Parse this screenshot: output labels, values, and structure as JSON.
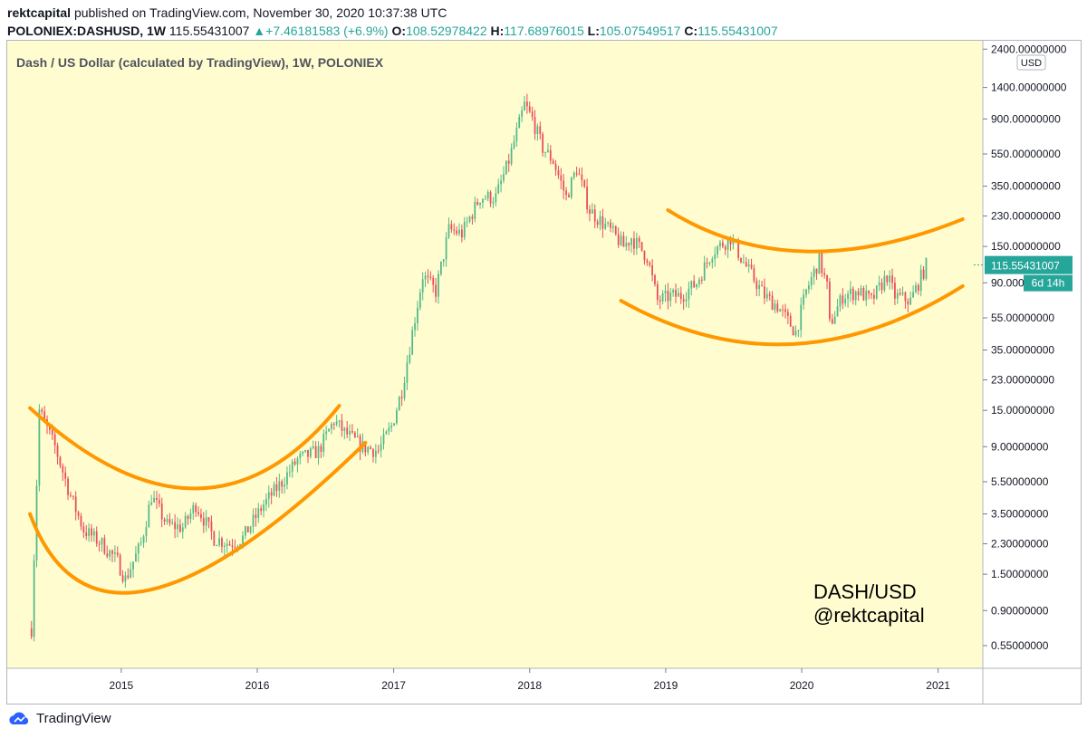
{
  "header": {
    "author": "rektcapital",
    "published_text": "published on TradingView.com, November 30, 2020 10:37:38 UTC",
    "symbol": "POLONIEX:DASHUSD, 1W",
    "last_price": "115.55431007",
    "change": "+7.46181583 (+6.9%)",
    "o_label": "O:",
    "o_value": "108.52978422",
    "h_label": "H:",
    "h_value": "117.68976015",
    "l_label": "L:",
    "l_value": "105.07549517",
    "c_label": "C:",
    "c_value": "115.55431007"
  },
  "watermark": {
    "line1": "DASH/USD",
    "line2": "@rektcapital"
  },
  "footer": {
    "brand": "TradingView"
  },
  "colors": {
    "up": "#26a69a",
    "up_fill": "#53b987",
    "down": "#eb4d5c",
    "plot_bg": "#fffdd0",
    "curve": "#ff9800",
    "price_tag": "#26a69a"
  },
  "chart_data": {
    "type": "candlestick",
    "title": "Dash / US Dollar (calculated by TradingView), 1W, POLONIEX",
    "interval": "1W",
    "y_scale": "log",
    "currency_label": "USD",
    "ylim": [
      0.4,
      2700
    ],
    "xlim": [
      "2014-03-01",
      "2021-05-01"
    ],
    "y_ticks": [
      2400,
      1400,
      900,
      550,
      350,
      230,
      150,
      90,
      55,
      35,
      23,
      15,
      9,
      5.5,
      3.5,
      2.3,
      1.5,
      0.9,
      0.55
    ],
    "y_tick_labels": [
      "2400.00000000",
      "1400.00000000",
      "900.00000000",
      "550.00000000",
      "350.00000000",
      "230.00000000",
      "150.00000000",
      "90.00000000",
      "55.00000000",
      "35.00000000",
      "23.00000000",
      "15.00000000",
      "9.00000000",
      "5.50000000",
      "3.50000000",
      "2.30000000",
      "1.50000000",
      "0.90000000",
      "0.55000000"
    ],
    "x_ticks": [
      "2015",
      "2016",
      "2017",
      "2018",
      "2019",
      "2020",
      "2021"
    ],
    "last_price_label": "115.55431007",
    "countdown_label": "6d 14h",
    "price_path": [
      [
        "2014-05-05",
        0.7
      ],
      [
        "2014-05-26",
        15
      ],
      [
        "2014-07-07",
        9
      ],
      [
        "2014-08-18",
        4.5
      ],
      [
        "2014-09-22",
        2.8
      ],
      [
        "2014-11-10",
        2.3
      ],
      [
        "2014-12-22",
        1.8
      ],
      [
        "2015-01-12",
        1.4
      ],
      [
        "2015-02-23",
        2.3
      ],
      [
        "2015-03-23",
        4.5
      ],
      [
        "2015-05-04",
        3.0
      ],
      [
        "2015-06-15",
        2.9
      ],
      [
        "2015-07-20",
        4.0
      ],
      [
        "2015-09-07",
        2.5
      ],
      [
        "2015-10-19",
        2.3
      ],
      [
        "2015-11-23",
        2.5
      ],
      [
        "2016-01-18",
        4.0
      ],
      [
        "2016-03-07",
        5.5
      ],
      [
        "2016-04-18",
        7.5
      ],
      [
        "2016-06-13",
        8.5
      ],
      [
        "2016-07-25",
        13
      ],
      [
        "2016-08-22",
        11
      ],
      [
        "2016-10-10",
        9
      ],
      [
        "2016-11-21",
        8.5
      ],
      [
        "2016-12-26",
        12
      ],
      [
        "2017-01-23",
        20
      ],
      [
        "2017-02-20",
        45
      ],
      [
        "2017-03-20",
        100
      ],
      [
        "2017-04-24",
        80
      ],
      [
        "2017-05-29",
        190
      ],
      [
        "2017-07-03",
        180
      ],
      [
        "2017-08-21",
        300
      ],
      [
        "2017-10-02",
        300
      ],
      [
        "2017-11-06",
        500
      ],
      [
        "2017-12-18",
        1100
      ],
      [
        "2018-01-08",
        900
      ],
      [
        "2018-02-05",
        600
      ],
      [
        "2018-03-05",
        500
      ],
      [
        "2018-04-09",
        300
      ],
      [
        "2018-05-07",
        450
      ],
      [
        "2018-06-11",
        250
      ],
      [
        "2018-08-13",
        180
      ],
      [
        "2018-09-10",
        150
      ],
      [
        "2018-10-01",
        170
      ],
      [
        "2018-11-12",
        130
      ],
      [
        "2018-12-10",
        70
      ],
      [
        "2019-01-14",
        75
      ],
      [
        "2019-02-11",
        75
      ],
      [
        "2019-03-25",
        90
      ],
      [
        "2019-05-06",
        140
      ],
      [
        "2019-06-24",
        170
      ],
      [
        "2019-07-29",
        120
      ],
      [
        "2019-09-23",
        75
      ],
      [
        "2019-10-28",
        65
      ],
      [
        "2019-12-16",
        45
      ],
      [
        "2020-01-13",
        80
      ],
      [
        "2020-02-17",
        125
      ],
      [
        "2020-03-09",
        85
      ],
      [
        "2020-03-16",
        50
      ],
      [
        "2020-04-20",
        75
      ],
      [
        "2020-06-01",
        80
      ],
      [
        "2020-07-06",
        70
      ],
      [
        "2020-08-17",
        100
      ],
      [
        "2020-09-07",
        75
      ],
      [
        "2020-10-19",
        70
      ],
      [
        "2020-11-09",
        90
      ],
      [
        "2020-11-30",
        115.55
      ]
    ],
    "drawn_curves": [
      {
        "points": [
          [
            "2014-05-01",
            15.5
          ],
          [
            "2015-07-20",
            5.0
          ],
          [
            "2016-08-08",
            16
          ]
        ]
      },
      {
        "points": [
          [
            "2014-05-01",
            3.5
          ],
          [
            "2015-03-16",
            1.2
          ],
          [
            "2016-10-17",
            9.5
          ]
        ]
      },
      {
        "points": [
          [
            "2019-01-07",
            250
          ],
          [
            "2020-01-06",
            140
          ],
          [
            "2021-03-08",
            220
          ]
        ]
      },
      {
        "points": [
          [
            "2018-09-03",
            70
          ],
          [
            "2019-12-02",
            38
          ],
          [
            "2021-03-08",
            86
          ]
        ]
      }
    ]
  }
}
